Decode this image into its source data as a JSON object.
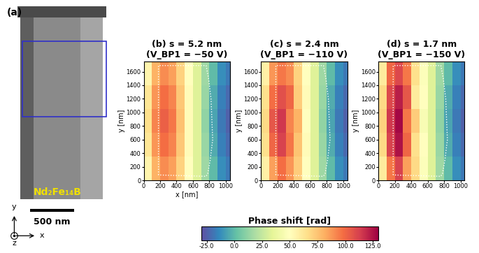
{
  "image_panel": {
    "label": "(a)",
    "material": "Nd₂Fe₁₄B",
    "scale_bar": "500 nm",
    "axis_labels": [
      "x",
      "y",
      "z"
    ]
  },
  "colorbar": {
    "label": "Phase shift [rad]",
    "range": [
      -30,
      130
    ],
    "ticks": [
      {
        "value": -25,
        "label": "-25.0"
      },
      {
        "value": 0,
        "label": "0.0"
      },
      {
        "value": 25,
        "label": "25.0"
      },
      {
        "value": 50,
        "label": "50.0"
      },
      {
        "value": 75,
        "label": "75.0"
      },
      {
        "value": 100,
        "label": "100.0"
      },
      {
        "value": 125,
        "label": "125.0"
      }
    ]
  },
  "chart_data": [
    {
      "type": "heatmap",
      "title": "(b) s = 5.2 nm\n(V_BP1 = −50 V)",
      "xlabel": "x [nm]",
      "ylabel": "y [nm]",
      "xlim": [
        0,
        1050
      ],
      "ylim": [
        0,
        1750
      ],
      "xticks": [
        0,
        200,
        400,
        600,
        800,
        1000
      ],
      "yticks": [
        0,
        200,
        400,
        600,
        800,
        1000,
        1200,
        1400,
        1600
      ],
      "x_edges": [
        0,
        100,
        200,
        300,
        400,
        500,
        600,
        700,
        800,
        900,
        1000,
        1050
      ],
      "y_edges": [
        0,
        350,
        700,
        1050,
        1400,
        1750
      ],
      "cells": [
        [
          55,
          80,
          90,
          85,
          70,
          50,
          32,
          15,
          0,
          -12,
          -18
        ],
        [
          62,
          88,
          98,
          92,
          74,
          52,
          32,
          14,
          -4,
          -16,
          -22
        ],
        [
          65,
          92,
          102,
          95,
          76,
          52,
          32,
          12,
          -6,
          -18,
          -25
        ],
        [
          62,
          88,
          98,
          92,
          74,
          52,
          32,
          14,
          -4,
          -16,
          -22
        ],
        [
          55,
          80,
          90,
          85,
          70,
          50,
          32,
          15,
          0,
          -12,
          -18
        ]
      ],
      "outline": {
        "x": [
          180,
          180,
          760,
          790,
          820,
          830,
          840,
          810,
          780,
          760,
          180
        ],
        "y": [
          80,
          1690,
          1690,
          1500,
          1200,
          900,
          600,
          300,
          100,
          60,
          80
        ]
      }
    },
    {
      "type": "heatmap",
      "title": "(c) s = 2.4 nm\n(V_BP1 = −110 V)",
      "ylabel": "y [nm]",
      "xlim": [
        0,
        1050
      ],
      "ylim": [
        0,
        1750
      ],
      "xticks": [
        0,
        200,
        400,
        600,
        800,
        1000
      ],
      "yticks": [
        0,
        200,
        400,
        600,
        800,
        1000,
        1200,
        1400,
        1600
      ],
      "x_edges": [
        0,
        100,
        200,
        300,
        400,
        500,
        600,
        700,
        800,
        900,
        1000,
        1050
      ],
      "y_edges": [
        0,
        350,
        700,
        1050,
        1400,
        1750
      ],
      "cells": [
        [
          58,
          85,
          98,
          88,
          72,
          50,
          32,
          15,
          0,
          -12,
          -18
        ],
        [
          65,
          100,
          112,
          96,
          75,
          52,
          32,
          14,
          -4,
          -16,
          -22
        ],
        [
          68,
          105,
          115,
          92,
          80,
          50,
          32,
          12,
          -6,
          -18,
          -25
        ],
        [
          65,
          98,
          108,
          100,
          72,
          52,
          32,
          14,
          -4,
          -16,
          -22
        ],
        [
          58,
          88,
          95,
          90,
          70,
          50,
          32,
          15,
          0,
          -12,
          -18
        ]
      ],
      "outline": {
        "x": [
          180,
          180,
          760,
          790,
          820,
          830,
          840,
          810,
          780,
          760,
          180
        ],
        "y": [
          80,
          1690,
          1690,
          1500,
          1200,
          900,
          600,
          300,
          100,
          60,
          80
        ]
      }
    },
    {
      "type": "heatmap",
      "title": "(d) s = 1.7 nm\n(V_BP1 = −150 V)",
      "ylabel": "y [nm]",
      "xlim": [
        0,
        1050
      ],
      "ylim": [
        0,
        1750
      ],
      "xticks": [
        0,
        200,
        400,
        600,
        800,
        1000
      ],
      "yticks": [
        0,
        200,
        400,
        600,
        800,
        1000,
        1200,
        1400,
        1600
      ],
      "x_edges": [
        0,
        100,
        200,
        300,
        400,
        500,
        600,
        700,
        800,
        900,
        1000,
        1050
      ],
      "y_edges": [
        0,
        350,
        700,
        1050,
        1400,
        1750
      ],
      "cells": [
        [
          60,
          95,
          112,
          85,
          68,
          48,
          32,
          15,
          0,
          -12,
          -18
        ],
        [
          68,
          112,
          125,
          100,
          65,
          50,
          32,
          14,
          -4,
          -16,
          -22
        ],
        [
          70,
          115,
          128,
          95,
          72,
          45,
          32,
          12,
          -6,
          -18,
          -25
        ],
        [
          68,
          110,
          122,
          105,
          60,
          50,
          32,
          14,
          -4,
          -16,
          -22
        ],
        [
          60,
          100,
          110,
          95,
          65,
          48,
          32,
          15,
          0,
          -12,
          -18
        ]
      ],
      "outline": {
        "x": [
          180,
          180,
          760,
          790,
          820,
          830,
          840,
          810,
          780,
          760,
          180
        ],
        "y": [
          80,
          1690,
          1690,
          1500,
          1200,
          900,
          600,
          300,
          100,
          60,
          80
        ]
      }
    }
  ]
}
